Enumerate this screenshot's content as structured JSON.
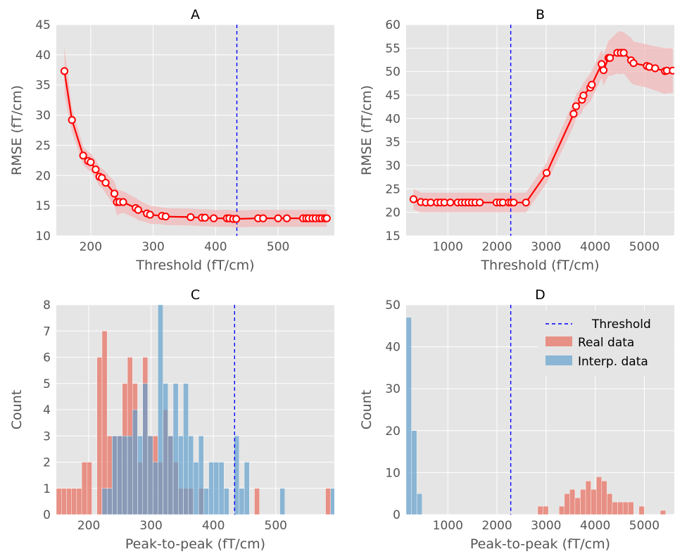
{
  "chart_data": [
    {
      "panel": "A",
      "type": "line",
      "title": "A",
      "xlabel": "Threshold (fT/cm)",
      "ylabel": "RMSE (fT/cm)",
      "xlim": [
        145,
        590
      ],
      "ylim": [
        10,
        45
      ],
      "xticks": [
        200,
        300,
        400,
        500
      ],
      "yticks": [
        10,
        15,
        20,
        25,
        30,
        35,
        40,
        45
      ],
      "grid": true,
      "threshold": 434,
      "series": [
        {
          "x": [
            158,
            170,
            188,
            196,
            200,
            208,
            214,
            218,
            224,
            238,
            242,
            246,
            252,
            272,
            276,
            290,
            295,
            314,
            320,
            360,
            378,
            383,
            397,
            418,
            422,
            428,
            433,
            468,
            476,
            500,
            514,
            540,
            545,
            549,
            555,
            560,
            566,
            570,
            575,
            578
          ],
          "y": [
            37.3,
            29.2,
            23.3,
            22.4,
            22.2,
            21.0,
            19.8,
            19.6,
            18.8,
            17.0,
            15.6,
            15.6,
            15.6,
            14.6,
            14.3,
            13.7,
            13.5,
            13.3,
            13.2,
            13.1,
            13.0,
            13.0,
            12.9,
            12.9,
            12.9,
            12.8,
            12.8,
            12.9,
            12.9,
            12.9,
            12.9,
            12.9,
            12.9,
            12.9,
            12.9,
            12.9,
            12.9,
            12.9,
            12.9,
            12.9
          ],
          "band_upper": [
            41.3,
            31.2,
            24.8,
            23.9,
            23.7,
            22.6,
            21.4,
            21.2,
            20.6,
            19.0,
            17.8,
            17.6,
            17.4,
            16.3,
            16.0,
            15.2,
            15.0,
            14.7,
            14.6,
            14.5,
            14.4,
            14.4,
            14.3,
            14.3,
            14.3,
            14.2,
            14.2,
            14.3,
            14.3,
            14.3,
            14.3,
            14.3,
            14.3,
            14.3,
            14.3,
            14.3,
            14.3,
            14.3,
            14.3,
            14.3
          ],
          "band_lower": [
            33.5,
            27.2,
            21.8,
            20.9,
            20.7,
            19.4,
            18.2,
            18.0,
            17.0,
            15.0,
            13.4,
            13.6,
            13.8,
            12.9,
            12.6,
            12.2,
            12.0,
            11.9,
            11.8,
            11.7,
            11.6,
            11.6,
            11.5,
            11.5,
            11.5,
            11.4,
            11.4,
            11.5,
            11.5,
            11.5,
            11.5,
            11.5,
            11.5,
            11.5,
            11.5,
            11.5,
            11.5,
            11.5,
            11.5,
            11.5
          ]
        }
      ],
      "colors": {
        "line": "#ff0000",
        "band": "#f4b6b8",
        "threshold": "#0000ff",
        "grid_bg": "#e5e5e5"
      }
    },
    {
      "panel": "B",
      "type": "line",
      "title": "B",
      "xlabel": "Threshold (fT/cm)",
      "ylabel": "RMSE (fT/cm)",
      "xlim": [
        150,
        5610
      ],
      "ylim": [
        15,
        60
      ],
      "xticks": [
        1000,
        2000,
        3000,
        4000,
        5000
      ],
      "yticks": [
        15,
        20,
        25,
        30,
        35,
        40,
        45,
        50,
        55,
        60
      ],
      "grid": true,
      "threshold": 2280,
      "series": [
        {
          "x": [
            300,
            450,
            550,
            650,
            780,
            850,
            930,
            1050,
            1200,
            1280,
            1350,
            1420,
            1490,
            1560,
            1650,
            1990,
            2060,
            2120,
            2240,
            2290,
            2340,
            2590,
            3010,
            3560,
            3610,
            3730,
            3760,
            3900,
            3930,
            4130,
            4170,
            4270,
            4300,
            4450,
            4520,
            4580,
            4730,
            4780,
            5050,
            5100,
            5220,
            5420,
            5460,
            5580
          ],
          "y": [
            22.8,
            22.2,
            22.1,
            22.1,
            22.1,
            22.1,
            22.1,
            22.1,
            22.1,
            22.1,
            22.1,
            22.1,
            22.1,
            22.1,
            22.1,
            22.1,
            22.1,
            22.1,
            22.1,
            22.1,
            22.1,
            22.1,
            28.4,
            41.0,
            42.6,
            44.0,
            44.9,
            46.6,
            47.2,
            51.6,
            50.3,
            52.9,
            52.9,
            54.0,
            54.0,
            54.0,
            52.4,
            51.8,
            51.2,
            51.0,
            50.7,
            50.1,
            50.2,
            50.2
          ],
          "band_upper": [
            25.0,
            24.2,
            24.2,
            24.2,
            24.2,
            24.2,
            24.2,
            24.2,
            24.2,
            24.2,
            24.2,
            24.2,
            24.2,
            24.2,
            24.2,
            24.2,
            24.2,
            24.2,
            24.2,
            24.2,
            24.2,
            24.2,
            30.6,
            43.6,
            45.2,
            46.8,
            47.6,
            49.6,
            50.2,
            54.6,
            53.6,
            56.6,
            56.8,
            58.4,
            58.6,
            58.4,
            57.2,
            56.4,
            55.8,
            55.6,
            55.4,
            55.0,
            55.0,
            55.0
          ],
          "band_lower": [
            20.6,
            20.0,
            20.0,
            20.0,
            20.0,
            20.0,
            20.0,
            20.0,
            20.0,
            20.0,
            20.0,
            20.0,
            20.0,
            20.0,
            20.0,
            20.0,
            20.0,
            20.0,
            20.0,
            20.0,
            20.0,
            20.0,
            26.2,
            38.4,
            40.0,
            41.2,
            42.2,
            43.6,
            44.2,
            48.6,
            47.0,
            49.2,
            49.0,
            49.6,
            49.4,
            49.6,
            47.6,
            47.2,
            46.6,
            46.4,
            46.0,
            45.2,
            45.4,
            45.4
          ]
        }
      ],
      "colors": {
        "line": "#ff0000",
        "band": "#f4b6b8",
        "threshold": "#0000ff",
        "grid_bg": "#e5e5e5"
      }
    },
    {
      "panel": "C",
      "type": "bar",
      "title": "C",
      "xlabel": "Peak-to-peak (fT/cm)",
      "ylabel": "Count",
      "xlim": [
        148,
        594
      ],
      "ylim": [
        0,
        8
      ],
      "xticks": [
        200,
        300,
        400,
        500
      ],
      "yticks": [
        0,
        1,
        2,
        3,
        4,
        5,
        6,
        7,
        8
      ],
      "grid": true,
      "threshold": 434,
      "bin_width": 8.15,
      "series": [
        {
          "name": "Real data",
          "bin_starts": [
            148,
            156.15,
            164.3,
            172.45,
            180.6,
            188.75,
            196.9,
            213.2,
            221.35,
            229.5,
            237.65,
            245.8,
            253.95,
            262.1,
            270.25,
            278.4,
            286.55,
            294.7,
            302.85,
            311,
            319.15,
            327.3,
            335.45,
            343.6,
            351.75,
            359.9,
            376.2,
            465.85,
            579.95
          ],
          "values": [
            1,
            1,
            1,
            1,
            1,
            2,
            2,
            6,
            7,
            3,
            3,
            3,
            5,
            6,
            5,
            2,
            6,
            3,
            3,
            2,
            4,
            3,
            2,
            1,
            1,
            1,
            1,
            1,
            1
          ]
        },
        {
          "name": "Interp. data",
          "bin_starts": [
            221.35,
            229.5,
            237.65,
            245.8,
            253.95,
            262.1,
            270.25,
            278.4,
            286.55,
            294.7,
            302.85,
            311,
            319.15,
            327.3,
            335.45,
            343.6,
            351.75,
            359.9,
            368.05,
            376.2,
            384.35,
            392.5,
            400.65,
            408.8,
            416.95,
            433.25,
            441.4,
            449.55,
            506.6,
            588.1
          ],
          "values": [
            1,
            1,
            3,
            3,
            3,
            3,
            4,
            3,
            5,
            3,
            2,
            8,
            5,
            3,
            5,
            3,
            5,
            3,
            2,
            3,
            1,
            2,
            2,
            2,
            1,
            3,
            1,
            2,
            1,
            1
          ]
        }
      ],
      "colors": {
        "real": "#e8786a",
        "interp": "#5f9dcb",
        "threshold": "#0000ff",
        "grid_bg": "#e5e5e5"
      }
    },
    {
      "panel": "D",
      "type": "bar",
      "title": "D",
      "xlabel": "Peak-to-peak (fT/cm)",
      "ylabel": "Count",
      "xlim": [
        150,
        5610
      ],
      "ylim": [
        0,
        50
      ],
      "xticks": [
        1000,
        2000,
        3000,
        4000,
        5000
      ],
      "yticks": [
        0,
        10,
        20,
        30,
        40,
        50
      ],
      "grid": true,
      "threshold": 2280,
      "legend": {
        "position": "top-right",
        "threshold_label": "Threshold",
        "real_label": "Real data",
        "interp_label": "Interp. data"
      },
      "bin_width": 108.5,
      "series": [
        {
          "name": "Real data",
          "bin_starts": [
            2829,
            2937,
            3263,
            3371,
            3480,
            3588,
            3697,
            3805,
            3914,
            4022,
            4131,
            4240,
            4348,
            4457,
            4565,
            4674,
            4891,
            5325
          ],
          "values": [
            2,
            2,
            2,
            5,
            6,
            4,
            6,
            8,
            6,
            9,
            8,
            5,
            3,
            3,
            3,
            3,
            2,
            1
          ]
        },
        {
          "name": "Interp. data",
          "bin_starts": [
            150,
            258,
            367
          ],
          "values": [
            47,
            20,
            5
          ]
        }
      ],
      "colors": {
        "real": "#e8786a",
        "interp": "#5f9dcb",
        "threshold": "#0000ff",
        "grid_bg": "#e5e5e5"
      }
    }
  ]
}
